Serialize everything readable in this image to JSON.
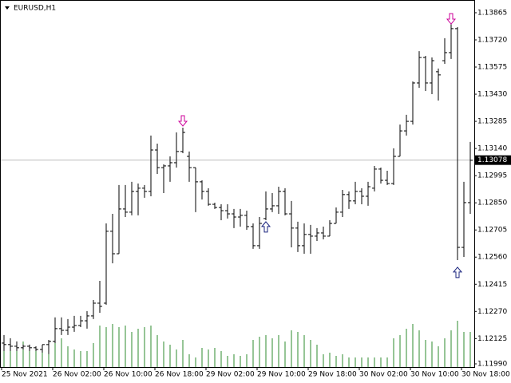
{
  "chart_data": {
    "type": "ohlc",
    "title": "EURUSD,H1",
    "categories": [
      "25 Nov 2021",
      null,
      null,
      null,
      null,
      null,
      null,
      null,
      "26 Nov 02:00",
      null,
      null,
      null,
      null,
      null,
      null,
      null,
      "26 Nov 10:00",
      null,
      null,
      null,
      null,
      null,
      null,
      null,
      "26 Nov 18:00",
      null,
      null,
      null,
      null,
      null,
      null,
      null,
      "29 Nov 02:00",
      null,
      null,
      null,
      null,
      null,
      null,
      null,
      "29 Nov 10:00",
      null,
      null,
      null,
      null,
      null,
      null,
      null,
      "29 Nov 18:00",
      null,
      null,
      null,
      null,
      null,
      null,
      null,
      "30 Nov 02:00",
      null,
      null,
      null,
      null,
      null,
      null,
      null,
      "30 Nov 10:00",
      null,
      null,
      null,
      null,
      null,
      null,
      null,
      "30 Nov 18:00",
      null
    ],
    "open": [
      1.12101,
      1.12093,
      1.12084,
      1.12076,
      1.12084,
      1.12076,
      1.12067,
      1.12093,
      1.1211,
      1.12178,
      1.12169,
      1.12186,
      1.12195,
      1.1222,
      1.12246,
      1.12314,
      1.12314,
      1.12698,
      1.12578,
      1.12817,
      1.128,
      1.12911,
      1.12928,
      1.12911,
      1.13132,
      1.13038,
      1.13047,
      1.13064,
      1.13124,
      1.13098,
      1.13038,
      1.12962,
      1.12911,
      1.12842,
      1.12825,
      1.12808,
      1.12791,
      1.12774,
      1.12783,
      1.12723,
      1.12621,
      1.12766,
      1.12817,
      1.12834,
      1.12911,
      1.12791,
      1.12715,
      1.12621,
      1.12681,
      1.12672,
      1.12689,
      1.12672,
      1.1274,
      1.128,
      1.12894,
      1.1286,
      1.12911,
      1.12885,
      1.12928,
      1.1303,
      1.1297,
      1.12953,
      1.13098,
      1.13234,
      1.13285,
      1.1349,
      1.13626,
      1.1349,
      1.1355,
      1.13609,
      1.13652,
      1.1378,
      1.12612,
      1.12851
    ],
    "high": [
      1.12144,
      1.12127,
      1.1211,
      1.12093,
      1.12093,
      1.12084,
      1.12093,
      1.12118,
      1.12238,
      1.12238,
      1.12229,
      1.12246,
      1.12246,
      1.12272,
      1.12331,
      1.12433,
      1.1274,
      1.12791,
      1.12945,
      1.12945,
      1.12962,
      1.12953,
      1.12945,
      1.13209,
      1.13166,
      1.13055,
      1.13098,
      1.13226,
      1.13251,
      1.13124,
      1.13038,
      1.1297,
      1.12928,
      1.12851,
      1.12842,
      1.12842,
      1.12817,
      1.12817,
      1.12808,
      1.1274,
      1.12774,
      1.12911,
      1.12902,
      1.12936,
      1.12928,
      1.1286,
      1.12749,
      1.1274,
      1.12732,
      1.12715,
      1.12723,
      1.12757,
      1.12825,
      1.12919,
      1.12911,
      1.12962,
      1.12928,
      1.12962,
      1.13047,
      1.13038,
      1.13021,
      1.13141,
      1.13268,
      1.1332,
      1.13498,
      1.1366,
      1.13635,
      1.13626,
      1.13567,
      1.13729,
      1.13805,
      1.13788,
      1.12962,
      1.13175
    ],
    "low": [
      1.12059,
      1.12059,
      1.12059,
      1.12067,
      1.12059,
      1.12059,
      1.1205,
      1.12042,
      1.12101,
      1.12144,
      1.12144,
      1.12161,
      1.12186,
      1.12178,
      1.12229,
      1.12263,
      1.12306,
      1.12527,
      1.12578,
      1.12774,
      1.12783,
      1.12783,
      1.12877,
      1.12885,
      1.13004,
      1.12902,
      1.12962,
      1.13038,
      1.13115,
      1.12962,
      1.128,
      1.12868,
      1.12834,
      1.12817,
      1.12757,
      1.12766,
      1.12715,
      1.12723,
      1.12706,
      1.12604,
      1.12604,
      1.12757,
      1.128,
      1.12791,
      1.12783,
      1.12612,
      1.12587,
      1.12578,
      1.12578,
      1.12646,
      1.12655,
      1.12672,
      1.1274,
      1.12774,
      1.12817,
      1.12842,
      1.12842,
      1.12834,
      1.12911,
      1.12953,
      1.12945,
      1.12945,
      1.13098,
      1.13209,
      1.13268,
      1.13464,
      1.13447,
      1.1343,
      1.13396,
      1.13592,
      1.13618,
      1.12544,
      1.12561,
      1.12791
    ],
    "close": [
      1.12093,
      1.12084,
      1.12076,
      1.12084,
      1.12076,
      1.12067,
      1.12093,
      1.1211,
      1.12178,
      1.12169,
      1.12186,
      1.12195,
      1.1222,
      1.12246,
      1.12314,
      1.12297,
      1.12698,
      1.12578,
      1.12817,
      1.128,
      1.12911,
      1.12928,
      1.12911,
      1.13132,
      1.13038,
      1.13047,
      1.13064,
      1.13124,
      1.13226,
      1.13038,
      1.12962,
      1.12911,
      1.12842,
      1.12825,
      1.12808,
      1.12791,
      1.12774,
      1.12783,
      1.12723,
      1.12621,
      1.1274,
      1.12817,
      1.12834,
      1.12911,
      1.12791,
      1.12715,
      1.12621,
      1.12681,
      1.12672,
      1.12689,
      1.12672,
      1.1274,
      1.128,
      1.12894,
      1.1286,
      1.12911,
      1.12885,
      1.12936,
      1.1303,
      1.1297,
      1.12953,
      1.13098,
      1.13234,
      1.13285,
      1.1349,
      1.13626,
      1.1349,
      1.13609,
      1.13533,
      1.13652,
      1.1378,
      1.12612,
      1.12851,
      1.13077
    ],
    "volume": [
      40,
      36,
      30,
      32,
      26,
      26,
      22,
      22,
      32,
      36,
      26,
      22,
      20,
      20,
      30,
      52,
      50,
      54,
      50,
      52,
      44,
      48,
      50,
      52,
      40,
      32,
      28,
      22,
      34,
      16,
      12,
      24,
      22,
      24,
      20,
      14,
      16,
      14,
      16,
      34,
      38,
      40,
      36,
      40,
      32,
      46,
      44,
      40,
      34,
      28,
      16,
      18,
      14,
      16,
      12,
      12,
      12,
      12,
      12,
      12,
      12,
      36,
      40,
      48,
      54,
      46,
      34,
      32,
      26,
      36,
      46,
      58,
      44,
      44
    ],
    "volume_color": "#2e8b2e",
    "sell_arrows": [
      null,
      null,
      null,
      null,
      null,
      null,
      null,
      null,
      null,
      null,
      null,
      null,
      null,
      null,
      null,
      null,
      null,
      null,
      null,
      null,
      null,
      null,
      null,
      null,
      null,
      null,
      null,
      null,
      1.1326,
      null,
      null,
      null,
      null,
      null,
      null,
      null,
      null,
      null,
      null,
      null,
      null,
      null,
      null,
      null,
      null,
      null,
      null,
      null,
      null,
      null,
      null,
      null,
      null,
      null,
      null,
      null,
      null,
      null,
      null,
      null,
      null,
      null,
      null,
      null,
      null,
      null,
      null,
      null,
      null,
      null,
      1.13805,
      null,
      null,
      null
    ],
    "sell_color": "#cc0099",
    "buy_arrows": [
      null,
      null,
      null,
      null,
      null,
      null,
      null,
      null,
      null,
      null,
      null,
      null,
      null,
      null,
      null,
      null,
      null,
      null,
      null,
      null,
      null,
      null,
      null,
      null,
      null,
      null,
      null,
      null,
      null,
      null,
      null,
      null,
      null,
      null,
      null,
      null,
      null,
      null,
      null,
      null,
      null,
      1.12749,
      null,
      null,
      null,
      null,
      null,
      null,
      null,
      null,
      null,
      null,
      null,
      null,
      null,
      null,
      null,
      null,
      null,
      null,
      null,
      null,
      null,
      null,
      null,
      null,
      null,
      null,
      null,
      null,
      null,
      1.12506,
      null,
      null
    ],
    "buy_color": "#1a237e",
    "current_price": 1.13078,
    "ylim": [
      1.11973,
      1.13933
    ],
    "yticks": [
      1.13865,
      {
        "value": 1.1372,
        "label": "1.13720"
      },
      1.13575,
      {
        "value": 1.1343,
        "label": "1.13430"
      },
      1.13285,
      {
        "value": 1.1314,
        "label": "1.13140"
      },
      1.12995,
      {
        "value": 1.1285,
        "label": "1.12850"
      },
      1.12705,
      {
        "value": 1.1256,
        "label": "1.12560"
      },
      1.12415,
      {
        "value": 1.1227,
        "label": "1.12270"
      },
      1.12125,
      {
        "value": 1.1199,
        "label": "1.11990"
      }
    ]
  }
}
